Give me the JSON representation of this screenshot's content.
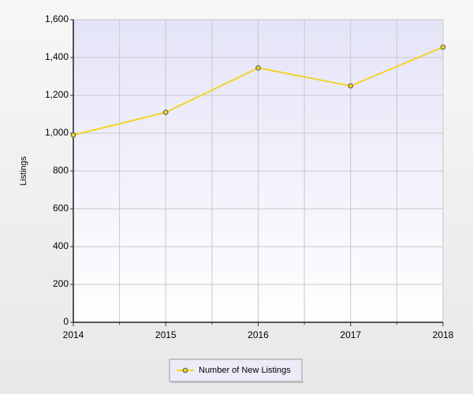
{
  "chart_data": {
    "type": "line",
    "y_label": "Listings",
    "x": [
      2014,
      2015,
      2016,
      2017,
      2018
    ],
    "xlim": [
      2014,
      2018
    ],
    "xticks": [
      2014,
      2015,
      2016,
      2017,
      2018
    ],
    "series": [
      {
        "name": "Number of New Listings",
        "color": "#f5d327",
        "values": [
          990,
          1110,
          1345,
          1250,
          1455
        ]
      }
    ],
    "ylim": [
      0,
      1600
    ],
    "yticks": [
      0,
      200,
      400,
      600,
      800,
      {
        "value": 1000,
        "label": "1,000"
      },
      {
        "value": 1200,
        "label": "1,200"
      },
      {
        "value": 1400,
        "label": "1,400"
      },
      {
        "value": 1600,
        "label": "1,600"
      }
    ],
    "grid": true,
    "legend": "bottom"
  }
}
